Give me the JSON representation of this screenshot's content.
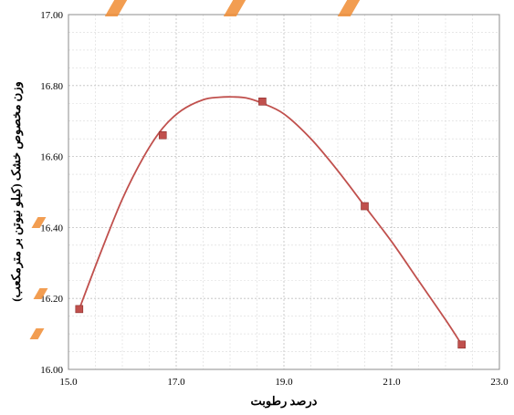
{
  "chart_data": {
    "type": "scatter",
    "xlabel": "درصد رطوبت",
    "ylabel": "وزن مخصوص خشک (کیلو نیوتن بر مترمکعب)",
    "xlim": [
      15.0,
      23.0
    ],
    "ylim": [
      16.0,
      17.0
    ],
    "x_ticks": [
      15.0,
      17.0,
      19.0,
      21.0,
      23.0
    ],
    "x_tick_labels": [
      "15.0",
      "17.0",
      "19.0",
      "21.0",
      "23.0"
    ],
    "y_ticks": [
      16.0,
      16.2,
      16.4,
      16.6,
      16.8,
      17.0
    ],
    "y_tick_labels": [
      "16.00",
      "16.20",
      "16.40",
      "16.60",
      "16.80",
      "17.00"
    ],
    "grid": true,
    "series": [
      {
        "kind": "markers",
        "marker": "square",
        "color": "#c0504d",
        "x": [
          15.2,
          16.75,
          18.6,
          20.5,
          22.3
        ],
        "y": [
          16.17,
          16.66,
          16.755,
          16.46,
          16.07
        ]
      },
      {
        "kind": "fit-curve",
        "color": "#c0504d",
        "x": [
          15.2,
          15.6,
          16.0,
          16.4,
          16.75,
          17.1,
          17.5,
          17.8,
          18.05,
          18.3,
          18.6,
          19.0,
          19.5,
          20.0,
          20.5,
          21.0,
          21.5,
          22.0,
          22.3
        ],
        "y": [
          16.17,
          16.33,
          16.48,
          16.6,
          16.68,
          16.73,
          16.76,
          16.767,
          16.768,
          16.765,
          16.75,
          16.72,
          16.65,
          16.56,
          16.46,
          16.36,
          16.25,
          16.14,
          16.07
        ]
      }
    ]
  },
  "decor": {
    "accent_color": "#f08c32"
  }
}
